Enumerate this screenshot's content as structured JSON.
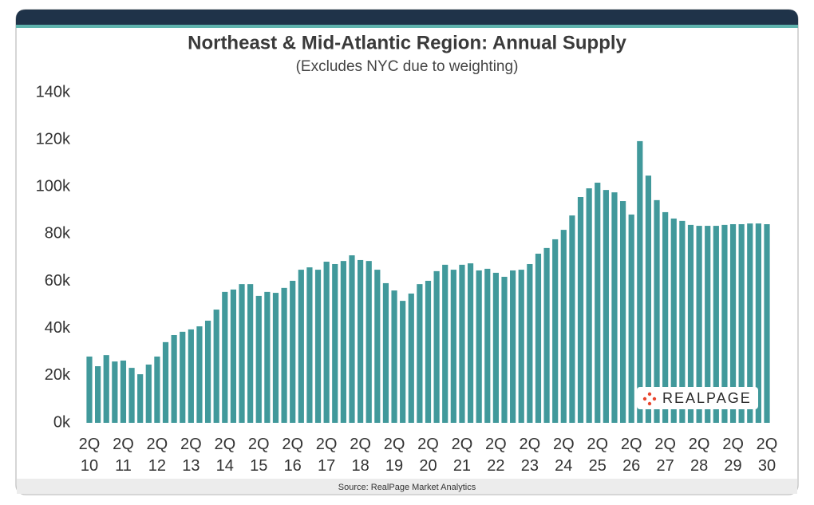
{
  "chart_data": {
    "type": "bar",
    "title": "Northeast & Mid-Atlantic Region: Annual Supply",
    "subtitle": "(Excludes NYC due to weighting)",
    "source": "Source: RealPage Market Analytics",
    "logo_text": "REALPAGE",
    "color": "#41999b",
    "ylim": [
      0,
      140000
    ],
    "yticks": [
      {
        "value": 0,
        "label": "0k"
      },
      {
        "value": 20000,
        "label": "20k"
      },
      {
        "value": 40000,
        "label": "40k"
      },
      {
        "value": 60000,
        "label": "60k"
      },
      {
        "value": 80000,
        "label": "80k"
      },
      {
        "value": 100000,
        "label": "100k"
      },
      {
        "value": 120000,
        "label": "120k"
      },
      {
        "value": 140000,
        "label": "140k"
      }
    ],
    "categories": [
      "2Q 10",
      null,
      null,
      null,
      "2Q 11",
      null,
      null,
      null,
      "2Q 12",
      null,
      null,
      null,
      "2Q 13",
      null,
      null,
      null,
      "2Q 14",
      null,
      null,
      null,
      "2Q 15",
      null,
      null,
      null,
      "2Q 16",
      null,
      null,
      null,
      "2Q 17",
      null,
      null,
      null,
      "2Q 18",
      null,
      null,
      null,
      "2Q 19",
      null,
      null,
      null,
      "2Q 20",
      null,
      null,
      null,
      "2Q 21",
      null,
      null,
      null,
      "2Q 22",
      null,
      null,
      null,
      "2Q 23",
      null,
      null,
      null,
      "2Q 24",
      null,
      null,
      null,
      "2Q 25",
      null,
      null,
      null,
      "2Q 26",
      null,
      null,
      null,
      "2Q 27",
      null,
      null,
      null,
      "2Q 28",
      null,
      null,
      null,
      "2Q 29",
      null,
      null,
      null,
      "2Q 30"
    ],
    "values": [
      28100,
      24000,
      28700,
      26000,
      26400,
      23300,
      20600,
      24700,
      28100,
      34200,
      37200,
      38600,
      39600,
      40900,
      43300,
      48000,
      55500,
      56500,
      58800,
      58800,
      53800,
      55500,
      55100,
      57200,
      60200,
      64900,
      65900,
      64900,
      68300,
      67300,
      68600,
      71000,
      69000,
      68600,
      64900,
      59200,
      56100,
      51700,
      54800,
      58800,
      60200,
      64300,
      67000,
      64900,
      67000,
      67600,
      64600,
      65300,
      63600,
      61900,
      64600,
      64900,
      67300,
      71700,
      74100,
      77800,
      81800,
      87900,
      95700,
      99400,
      101800,
      98700,
      97700,
      94000,
      88300,
      119400,
      104800,
      94400,
      89300,
      86600,
      85600,
      83900,
      83500,
      83500,
      83500,
      83900,
      84200,
      84200,
      84500,
      84500,
      84200
    ]
  }
}
